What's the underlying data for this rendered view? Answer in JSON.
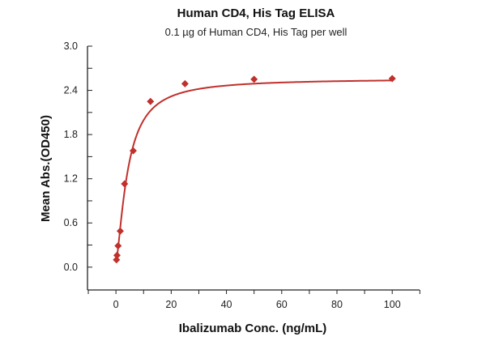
{
  "chart_data": {
    "type": "scatter",
    "title": "Human CD4, His Tag ELISA",
    "subtitle": "0.1 µg of Human CD4, His Tag per well",
    "xlabel": "Ibalizumab Conc. (ng/mL)",
    "ylabel": "Mean Abs.(OD450)",
    "xlim": [
      -10.3,
      109.9
    ],
    "ylim": [
      -0.31,
      3.0
    ],
    "xticks": [
      0,
      20,
      40,
      60,
      80,
      100
    ],
    "xtick_labels": [
      "0",
      "20",
      "40",
      "60",
      "80",
      "100"
    ],
    "yticks": [
      0.0,
      0.6,
      1.2,
      1.8,
      2.4,
      3.0
    ],
    "ytick_labels": [
      "0.0",
      "0.6",
      "1.2",
      "1.8",
      "2.4",
      "3.0"
    ],
    "grid": false,
    "fit_curve": true,
    "color": "#c0302c",
    "marker": "diamond",
    "x": [
      0.195,
      0.39,
      0.78,
      1.5625,
      3.125,
      6.25,
      12.5,
      25,
      50,
      100
    ],
    "y": [
      0.1,
      0.16,
      0.29,
      0.49,
      1.13,
      1.58,
      2.25,
      2.49,
      2.55,
      2.56
    ]
  }
}
